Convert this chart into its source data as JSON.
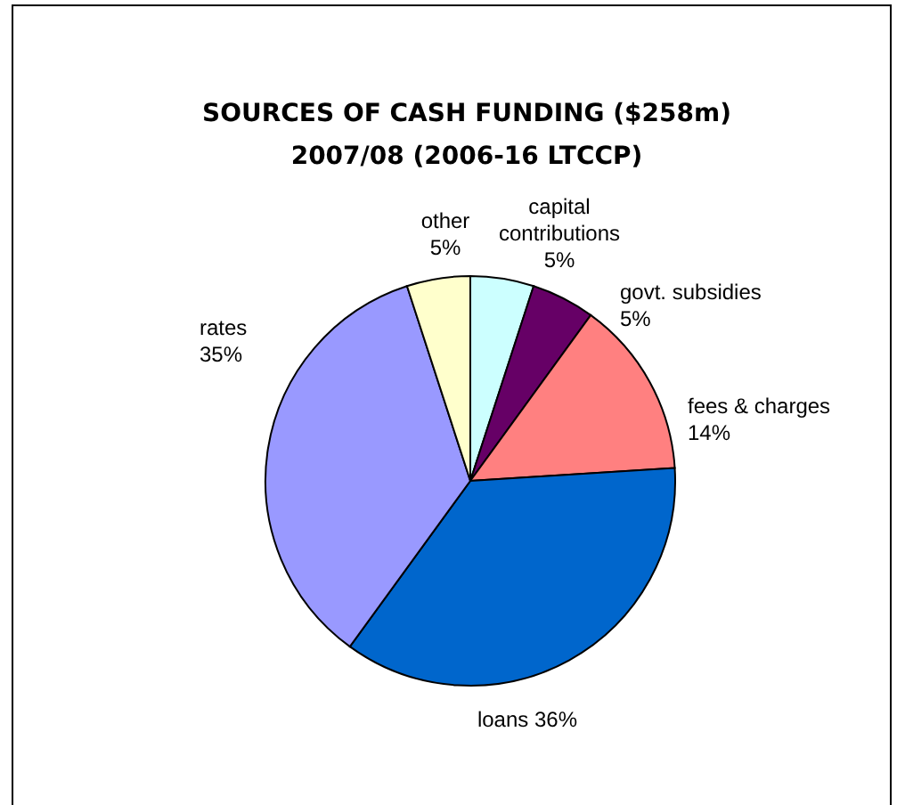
{
  "chart_data": {
    "type": "pie",
    "title": "SOURCES OF CASH FUNDING ($258m)\n2007/08 (2006-16 LTCCP)",
    "categories": [
      "capital contributions",
      "govt. subsidies",
      "fees & charges",
      "loans",
      "rates",
      "other"
    ],
    "values": [
      5,
      5,
      14,
      36,
      35,
      5
    ],
    "value_labels": [
      "5%",
      "5%",
      "14%",
      "36%",
      "35%",
      "5%"
    ],
    "colors": [
      "#ccffff",
      "#660066",
      "#ff8080",
      "#0066cc",
      "#9999ff",
      "#ffffcc"
    ]
  }
}
